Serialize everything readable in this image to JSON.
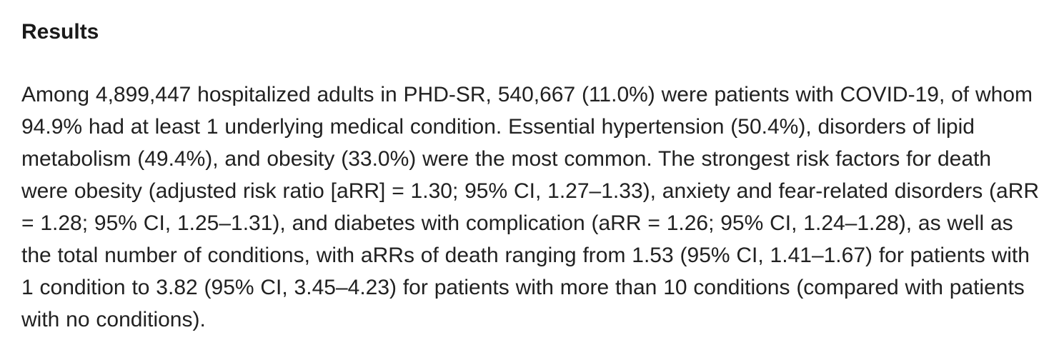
{
  "page": {
    "background_color": "#ffffff",
    "text_color": "#212121",
    "heading_color": "#1a1a1a"
  },
  "section": {
    "heading": "Results",
    "paragraph": "Among 4,899,447 hospitalized adults in PHD-SR, 540,667 (11.0%) were patients with COVID-19, of whom 94.9% had at least 1 underlying medical condition. Essential hypertension (50.4%), disorders of lipid metabolism (49.4%), and obesity (33.0%) were the most common. The strongest risk factors for death were obesity (adjusted risk ratio [aRR] = 1.30; 95% CI, 1.27–1.33), anxiety and fear-related disorders (aRR = 1.28; 95% CI, 1.25–1.31), and diabetes with complication (aRR = 1.26; 95% CI, 1.24–1.28), as well as the total number of conditions, with aRRs of death ranging from 1.53 (95% CI, 1.41–1.67) for patients with 1 condition to 3.82 (95% CI, 3.45–4.23) for patients with more than 10 conditions (compared with patients with no conditions)."
  }
}
